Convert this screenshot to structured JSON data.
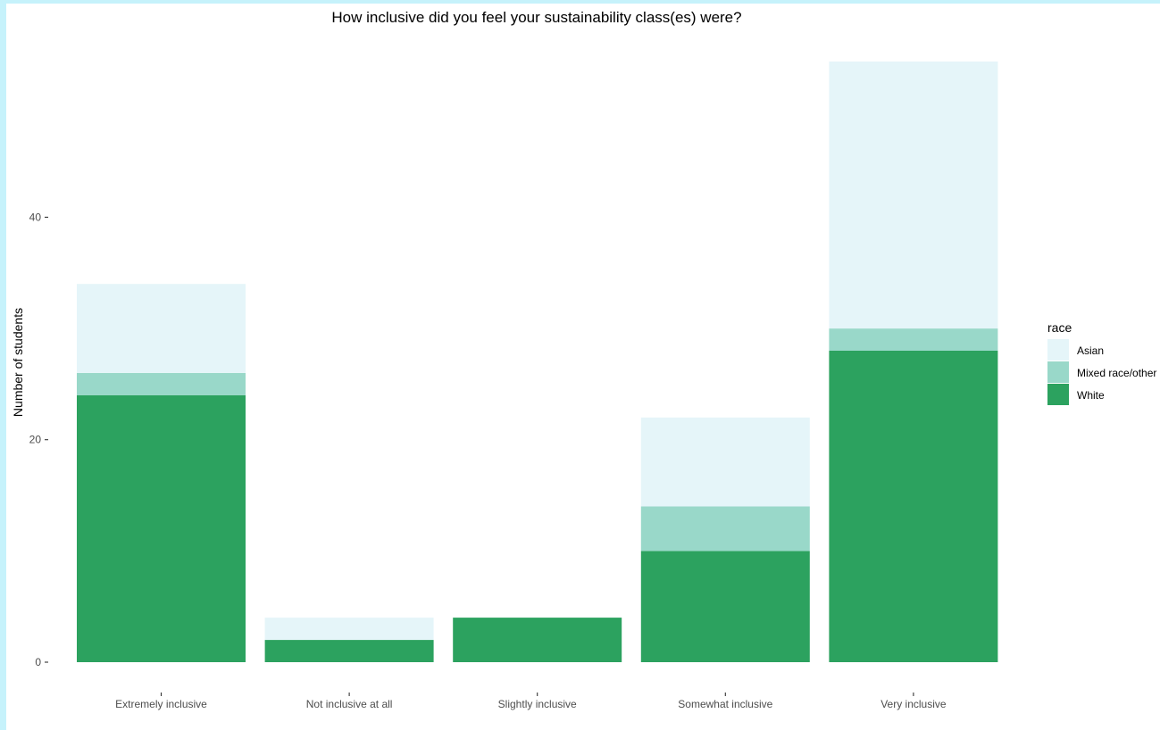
{
  "chart_data": {
    "type": "bar",
    "stacked": true,
    "title": "How inclusive did you feel your sustainability class(es) were?",
    "xlabel": "",
    "ylabel": "Number of students",
    "categories": [
      "Extremely inclusive",
      "Not inclusive at all",
      "Slightly inclusive",
      "Somewhat inclusive",
      "Very inclusive"
    ],
    "series": [
      {
        "name": "White",
        "color": "#2ca25f",
        "values": [
          24,
          2,
          4,
          10,
          28
        ]
      },
      {
        "name": "Mixed race/other",
        "color": "#99d8c9",
        "values": [
          2,
          0,
          0,
          4,
          2
        ]
      },
      {
        "name": "Asian",
        "color": "#e5f5f9",
        "values": [
          8,
          2,
          0,
          8,
          24
        ]
      }
    ],
    "ylim": [
      0,
      55
    ],
    "yticks": [
      0,
      20,
      40
    ],
    "grid": false,
    "legend": {
      "title": "race",
      "position": "right",
      "order": [
        "Asian",
        "Mixed race/other",
        "White"
      ]
    }
  }
}
